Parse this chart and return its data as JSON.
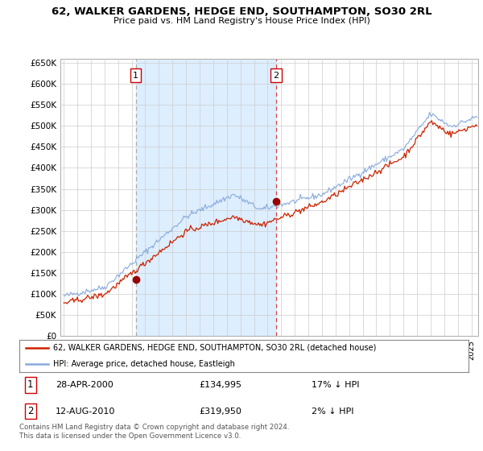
{
  "title": "62, WALKER GARDENS, HEDGE END, SOUTHAMPTON, SO30 2RL",
  "subtitle": "Price paid vs. HM Land Registry's House Price Index (HPI)",
  "legend_label_red": "62, WALKER GARDENS, HEDGE END, SOUTHAMPTON, SO30 2RL (detached house)",
  "legend_label_blue": "HPI: Average price, detached house, Eastleigh",
  "transaction1_date": "28-APR-2000",
  "transaction1_price": "£134,995",
  "transaction1_hpi": "17% ↓ HPI",
  "transaction2_date": "12-AUG-2010",
  "transaction2_price": "£319,950",
  "transaction2_hpi": "2% ↓ HPI",
  "footer": "Contains HM Land Registry data © Crown copyright and database right 2024.\nThis data is licensed under the Open Government Licence v3.0.",
  "ylim": [
    0,
    660000
  ],
  "yticks": [
    0,
    50000,
    100000,
    150000,
    200000,
    250000,
    300000,
    350000,
    400000,
    450000,
    500000,
    550000,
    600000,
    650000
  ],
  "background_color": "#ffffff",
  "plot_bg_color": "#ffffff",
  "shade_color": "#ddeeff",
  "grid_color": "#cccccc",
  "red_color": "#cc2200",
  "blue_color": "#88aadd",
  "vline1_color": "#aaaaaa",
  "vline2_color": "#dd4444"
}
